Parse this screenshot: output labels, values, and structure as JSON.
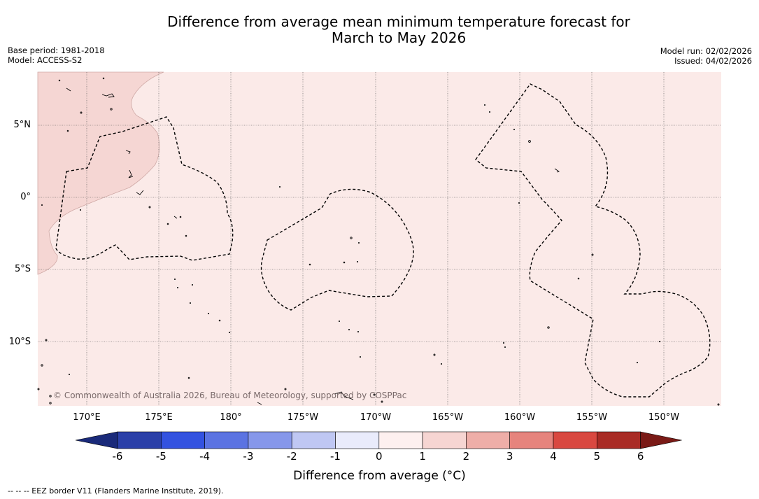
{
  "title": {
    "line1": "Difference from average mean minimum temperature forecast for",
    "line2": "March to May 2026"
  },
  "info_left": {
    "base_period": "Base period: 1981-2018",
    "model": "Model: ACCESS-S2"
  },
  "info_right": {
    "model_run": "Model run: 02/02/2026",
    "issued": "Issued: 04/02/2026"
  },
  "latitude_labels": [
    "5°N",
    "0°",
    "5°S",
    "10°S"
  ],
  "longitude_labels": [
    "170°E",
    "175°E",
    "180°",
    "175°W",
    "170°W",
    "165°W",
    "160°W",
    "155°W",
    "150°W"
  ],
  "copyright": "© Commonwealth of Australia 2026, Bureau of Meteorology, supported by COSPPac",
  "colorbar": {
    "ticks": [
      "-6",
      "-5",
      "-4",
      "-3",
      "-2",
      "-1",
      "0",
      "1",
      "2",
      "3",
      "4",
      "5",
      "6"
    ],
    "colors": [
      "#2a3fa8",
      "#3352e0",
      "#5b73e2",
      "#8697ea",
      "#bfc7f3",
      "#e9ebfb",
      "#fdf0ef",
      "#f6d5d2",
      "#eeaea8",
      "#e6847d",
      "#d94840",
      "#a92b25"
    ],
    "under_color": "#1a2a7a",
    "over_color": "#7a1a16",
    "label": "Difference from average (°C)"
  },
  "map_colors": {
    "background_zone": "#fbeae8",
    "warm_zone": "#f5d6d3"
  },
  "legend_note": "--  --  -- EEZ border V11 (Flanders Marine Institute, 2019)."
}
